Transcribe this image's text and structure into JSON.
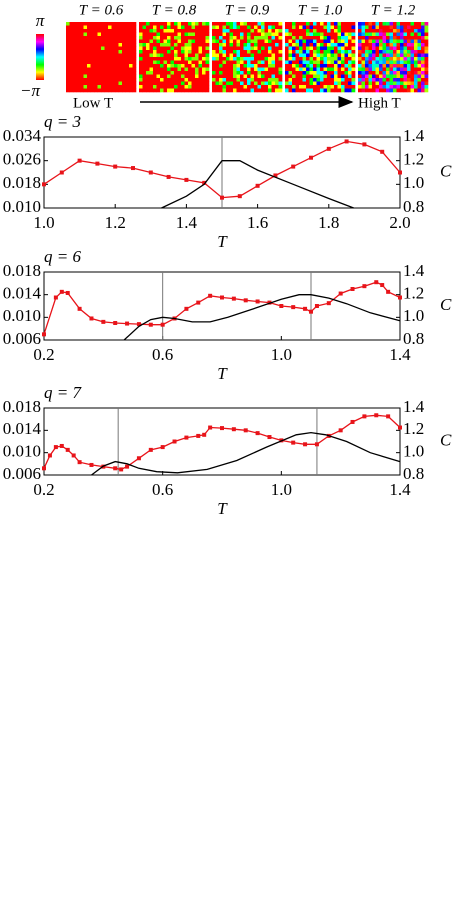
{
  "header": {
    "colorbar": {
      "top": "π",
      "bottom": "−π"
    },
    "snapshots": [
      "T = 0.6",
      "T = 0.8",
      "T = 0.9",
      "T = 1.0",
      "T = 1.2"
    ],
    "arrow": {
      "start": "Low T",
      "end": "High T"
    }
  },
  "chart_data": [
    {
      "type": "line",
      "title": "q = 3",
      "xlabel": "T",
      "y2label": "C",
      "xlim": [
        1.0,
        2.0
      ],
      "xticks": [
        {
          "value": 1,
          "label": "1.0"
        },
        1.2,
        1.4,
        1.6,
        1.8,
        {
          "value": 2,
          "label": "2.0"
        }
      ],
      "ylim": [
        0.01,
        0.034
      ],
      "yticks": [
        {
          "value": 0.01,
          "label": "0.010"
        },
        0.018,
        0.026,
        0.034
      ],
      "y2lim": [
        0.8,
        1.4
      ],
      "y2ticks": [
        0.8,
        {
          "value": 1,
          "label": "1.0"
        },
        1.2,
        1.4
      ],
      "vlines": [
        1.5
      ],
      "series": [
        {
          "color": "#e8141a",
          "marker": true,
          "x": [
            1.0,
            1.05,
            1.1,
            1.15,
            1.2,
            1.25,
            1.3,
            1.35,
            1.4,
            1.45,
            1.5,
            1.55,
            1.6,
            1.65,
            1.7,
            1.75,
            1.8,
            1.85,
            1.9,
            1.95,
            2.0
          ],
          "values": [
            0.018,
            0.022,
            0.026,
            0.025,
            0.024,
            0.0235,
            0.022,
            0.0205,
            0.0195,
            0.0185,
            0.0135,
            0.014,
            0.0175,
            0.021,
            0.024,
            0.027,
            0.03,
            0.0325,
            0.0315,
            0.029,
            0.022
          ]
        },
        {
          "color": "#000000",
          "axis": "y2",
          "x": [
            1.33,
            1.4,
            1.45,
            1.5,
            1.55,
            1.6,
            1.7,
            1.8,
            1.87
          ],
          "values": [
            0.8,
            0.9,
            1.0,
            1.2,
            1.2,
            1.12,
            1.0,
            0.88,
            0.8
          ]
        }
      ]
    },
    {
      "type": "line",
      "title": "q = 6",
      "xlabel": "T",
      "y2label": "C",
      "xlim": [
        0.2,
        1.4
      ],
      "xticks": [
        0.2,
        0.6,
        {
          "value": 1,
          "label": "1.0"
        },
        1.4
      ],
      "ylim": [
        0.006,
        0.018
      ],
      "yticks": [
        0.006,
        {
          "value": 0.01,
          "label": "0.010"
        },
        0.014,
        0.018
      ],
      "y2lim": [
        0.8,
        1.4
      ],
      "y2ticks": [
        0.8,
        {
          "value": 1,
          "label": "1.0"
        },
        1.2,
        1.4
      ],
      "vlines": [
        0.6,
        1.1
      ],
      "series": [
        {
          "color": "#e8141a",
          "marker": true,
          "x": [
            0.2,
            0.24,
            0.26,
            0.28,
            0.32,
            0.36,
            0.4,
            0.44,
            0.48,
            0.52,
            0.56,
            0.6,
            0.64,
            0.68,
            0.72,
            0.76,
            0.8,
            0.84,
            0.88,
            0.92,
            0.96,
            1.0,
            1.04,
            1.08,
            1.1,
            1.12,
            1.16,
            1.2,
            1.24,
            1.28,
            1.32,
            1.34,
            1.36,
            1.4
          ],
          "values": [
            0.007,
            0.0135,
            0.0145,
            0.0143,
            0.0115,
            0.0098,
            0.0092,
            0.009,
            0.0089,
            0.0088,
            0.0087,
            0.0087,
            0.0098,
            0.0115,
            0.0126,
            0.0138,
            0.0135,
            0.0133,
            0.013,
            0.0128,
            0.0126,
            0.012,
            0.0118,
            0.0115,
            0.011,
            0.012,
            0.0125,
            0.0142,
            0.015,
            0.0155,
            0.0162,
            0.0157,
            0.0145,
            0.0135
          ]
        },
        {
          "color": "#000000",
          "axis": "y2",
          "x": [
            0.47,
            0.52,
            0.56,
            0.6,
            0.64,
            0.7,
            0.76,
            0.82,
            0.9,
            1.0,
            1.06,
            1.1,
            1.16,
            1.22,
            1.3,
            1.4
          ],
          "values": [
            0.8,
            0.92,
            0.98,
            1.0,
            0.99,
            0.96,
            0.96,
            1.0,
            1.07,
            1.16,
            1.2,
            1.2,
            1.17,
            1.12,
            1.04,
            0.97
          ]
        }
      ]
    },
    {
      "type": "line",
      "title": "q = 7",
      "xlabel": "T",
      "y2label": "C",
      "xlim": [
        0.2,
        1.4
      ],
      "xticks": [
        0.2,
        0.6,
        {
          "value": 1,
          "label": "1.0"
        },
        1.4
      ],
      "ylim": [
        0.006,
        0.018
      ],
      "yticks": [
        0.006,
        {
          "value": 0.01,
          "label": "0.010"
        },
        0.014,
        0.018
      ],
      "y2lim": [
        0.8,
        1.4
      ],
      "y2ticks": [
        0.8,
        {
          "value": 1,
          "label": "1.0"
        },
        1.2,
        1.4
      ],
      "vlines": [
        0.45,
        1.12
      ],
      "series": [
        {
          "color": "#e8141a",
          "marker": true,
          "x": [
            0.2,
            0.22,
            0.24,
            0.26,
            0.28,
            0.3,
            0.32,
            0.36,
            0.4,
            0.44,
            0.46,
            0.48,
            0.52,
            0.56,
            0.6,
            0.64,
            0.68,
            0.72,
            0.74,
            0.76,
            0.8,
            0.84,
            0.88,
            0.92,
            0.96,
            1.0,
            1.04,
            1.08,
            1.12,
            1.16,
            1.2,
            1.24,
            1.28,
            1.32,
            1.36,
            1.4
          ],
          "values": [
            0.0072,
            0.0095,
            0.011,
            0.0112,
            0.0105,
            0.0095,
            0.0083,
            0.0078,
            0.0075,
            0.0072,
            0.007,
            0.0075,
            0.009,
            0.0105,
            0.011,
            0.012,
            0.0127,
            0.013,
            0.0132,
            0.0145,
            0.0144,
            0.0142,
            0.014,
            0.0135,
            0.0128,
            0.0122,
            0.0118,
            0.0115,
            0.0115,
            0.013,
            0.014,
            0.0155,
            0.0165,
            0.0167,
            0.0165,
            0.0145
          ]
        },
        {
          "color": "#000000",
          "axis": "y2",
          "x": [
            0.36,
            0.4,
            0.44,
            0.48,
            0.52,
            0.58,
            0.65,
            0.75,
            0.85,
            0.95,
            1.05,
            1.1,
            1.15,
            1.22,
            1.3,
            1.4
          ],
          "values": [
            0.8,
            0.88,
            0.92,
            0.9,
            0.86,
            0.83,
            0.82,
            0.85,
            0.93,
            1.05,
            1.16,
            1.18,
            1.16,
            1.1,
            1.0,
            0.92
          ]
        }
      ]
    }
  ]
}
